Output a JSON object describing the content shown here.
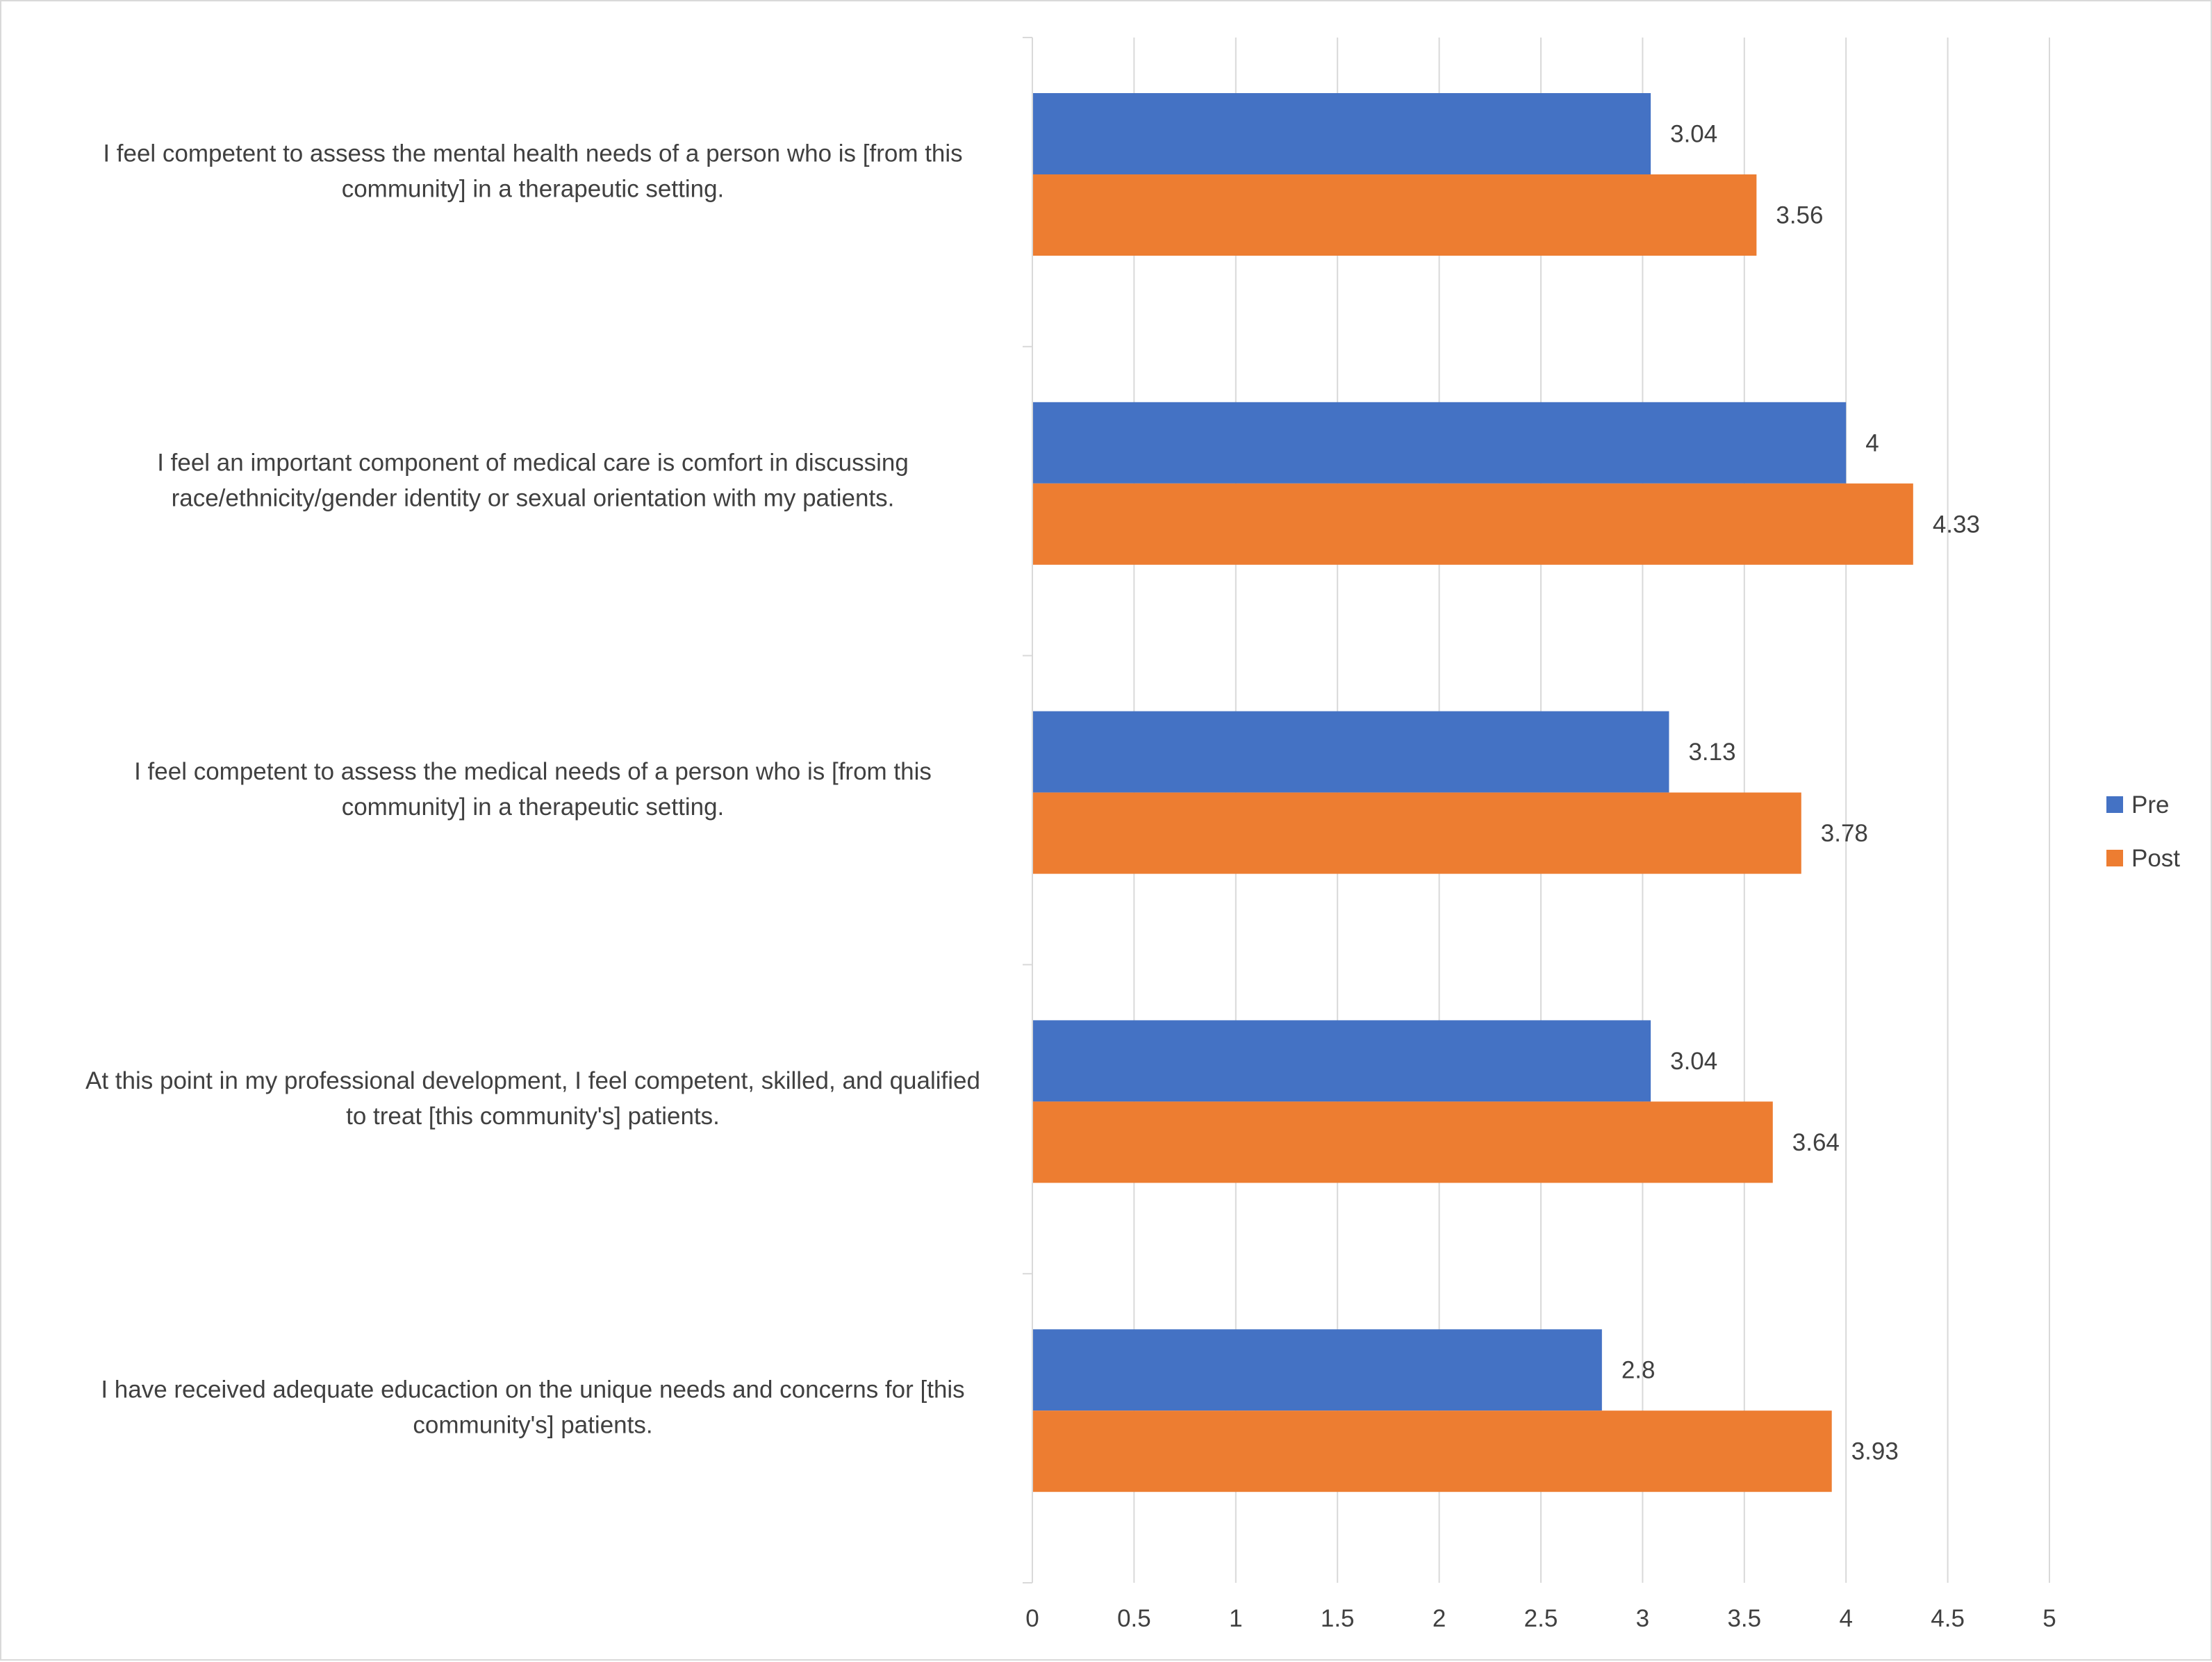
{
  "chart_data": {
    "type": "bar",
    "orientation": "horizontal",
    "categories": [
      "I feel competent to assess the mental health needs of a person who is [from this community] in a therapeutic setting.",
      "I feel an important component of medical care is comfort in discussing race/ethnicity/gender identity or sexual orientation with my patients.",
      "I feel competent to assess the medical needs of a person who is [from this community] in a therapeutic setting.",
      "At this point in my professional development, I feel competent, skilled, and qualified to treat [this community's] patients.",
      "I have received adequate educaction on the unique needs and concerns for [this community's] patients."
    ],
    "category_lines": [
      [
        "I feel competent to assess the mental health needs of a person who is [from this",
        "community] in a therapeutic setting."
      ],
      [
        "I feel an important component of medical care is comfort in discussing",
        "race/ethnicity/gender identity or sexual orientation with my patients."
      ],
      [
        "I feel competent to assess the medical needs of a person who is [from this",
        "community] in a therapeutic setting."
      ],
      [
        "At this point in my professional development, I feel competent, skilled, and qualified",
        "to treat [this community's] patients."
      ],
      [
        "I have received adequate educaction on the unique needs and concerns for [this",
        "community's] patients."
      ]
    ],
    "series": [
      {
        "name": "Pre",
        "color": "#4472c4",
        "values": [
          3.04,
          4,
          3.13,
          3.04,
          2.8
        ],
        "labels": [
          "3.04",
          "4",
          "3.13",
          "3.04",
          "2.8"
        ]
      },
      {
        "name": "Post",
        "color": "#ed7d31",
        "values": [
          3.56,
          4.33,
          3.78,
          3.64,
          3.93
        ],
        "labels": [
          "3.56",
          "4.33",
          "3.78",
          "3.64",
          "3.93"
        ]
      }
    ],
    "xlim": [
      0,
      5
    ],
    "xticks": [
      "0",
      "0.5",
      "1",
      "1.5",
      "2",
      "2.5",
      "3",
      "3.5",
      "4",
      "4.5",
      "5"
    ],
    "grid": true,
    "legend_position": "right",
    "data_labels": true
  }
}
